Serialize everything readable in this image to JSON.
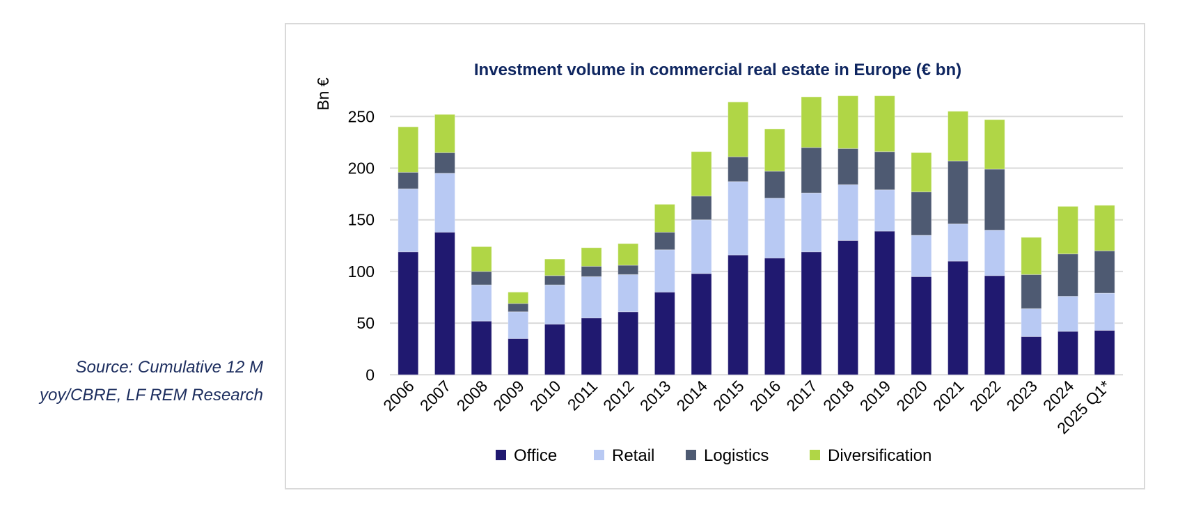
{
  "source_note": {
    "line1": "Source: Cumulative 12 M",
    "line2": "yoy/CBRE, LF REM Research"
  },
  "chart_data": {
    "type": "bar",
    "stacked": true,
    "title": "Investment volume in commercial real estate in Europe (€ bn)",
    "xlabel": "",
    "ylabel": "Bn €",
    "ylim": [
      0,
      250
    ],
    "yticks": [
      0,
      50,
      100,
      150,
      200,
      250
    ],
    "grid": true,
    "legend_position": "bottom",
    "categories": [
      "2006",
      "2007",
      "2008",
      "2009",
      "2010",
      "2011",
      "2012",
      "2013",
      "2014",
      "2015",
      "2016",
      "2017",
      "2018",
      "2019",
      "2020",
      "2021",
      "2022",
      "2023",
      "2024",
      "2025 Q1*"
    ],
    "series": [
      {
        "name": "Office",
        "color": "#201970",
        "values": [
          119,
          138,
          52,
          35,
          49,
          55,
          61,
          80,
          98,
          116,
          113,
          119,
          130,
          139,
          95,
          110,
          96,
          37,
          42,
          43
        ]
      },
      {
        "name": "Retail",
        "color": "#b8c9f3",
        "values": [
          61,
          57,
          35,
          26,
          38,
          40,
          36,
          41,
          52,
          71,
          58,
          57,
          54,
          40,
          40,
          36,
          44,
          27,
          34,
          36
        ]
      },
      {
        "name": "Logistics",
        "color": "#4e5a72",
        "values": [
          16,
          20,
          13,
          8,
          9,
          10,
          9,
          17,
          23,
          24,
          26,
          44,
          35,
          37,
          42,
          61,
          59,
          33,
          41,
          41
        ]
      },
      {
        "name": "Diversification",
        "color": "#b0d646",
        "values": [
          44,
          37,
          24,
          11,
          16,
          18,
          21,
          27,
          43,
          53,
          41,
          49,
          51,
          54,
          38,
          48,
          48,
          36,
          46,
          44
        ]
      }
    ]
  }
}
